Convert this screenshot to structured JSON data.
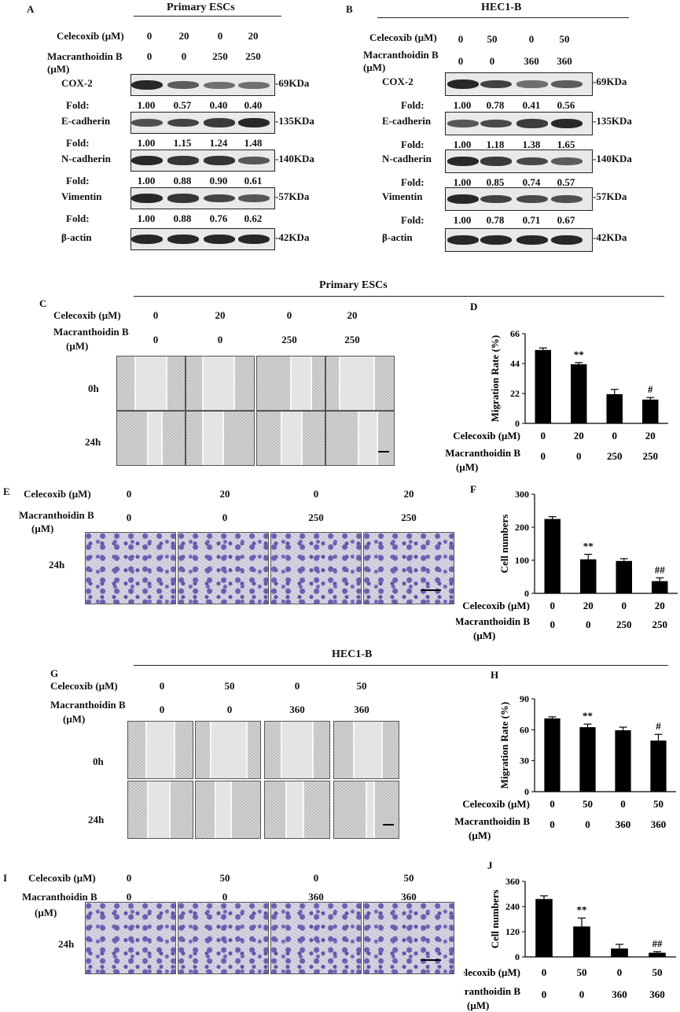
{
  "panels": {
    "A": {
      "letter": "A",
      "title": "Primary ESCs",
      "row1_label": "Celecoxib (μM)",
      "row1": [
        "0",
        "20",
        "0",
        "20"
      ],
      "row2_label": "Macranthoidin B",
      "row2_label2": "(μM)",
      "row2": [
        "0",
        "0",
        "250",
        "250"
      ],
      "blots": [
        {
          "name": "COX-2",
          "kda": "-69KDa",
          "fold": [
            "1.00",
            "0.57",
            "0.40",
            "0.40"
          ]
        },
        {
          "name": "E-cadherin",
          "kda": "-135KDa",
          "fold": [
            "1.00",
            "1.15",
            "1.24",
            "1.48"
          ]
        },
        {
          "name": "N-cadherin",
          "kda": "-140KDa",
          "fold": [
            "1.00",
            "0.88",
            "0.90",
            "0.61"
          ]
        },
        {
          "name": "Vimentin",
          "kda": "-57KDa",
          "fold": [
            "1.00",
            "0.88",
            "0.76",
            "0.62"
          ]
        },
        {
          "name": "β-actin",
          "kda": "-42KDa",
          "fold": null
        }
      ],
      "fold_label": "Fold:"
    },
    "B": {
      "letter": "B",
      "title": "HEC1-B",
      "row1_label": "Celecoxib (μM)",
      "row1": [
        "0",
        "50",
        "0",
        "50"
      ],
      "row2_label": "Macranthoidin B",
      "row2_label2": "(μM)",
      "row2": [
        "0",
        "0",
        "360",
        "360"
      ],
      "blots": [
        {
          "name": "COX-2",
          "kda": "-69KDa",
          "fold": [
            "1.00",
            "0.78",
            "0.41",
            "0.56"
          ]
        },
        {
          "name": "E-cadherin",
          "kda": "-135KDa",
          "fold": [
            "1.00",
            "1.18",
            "1.38",
            "1.65"
          ]
        },
        {
          "name": "N-cadherin",
          "kda": "-140KDa",
          "fold": [
            "1.00",
            "0.85",
            "0.74",
            "0.57"
          ]
        },
        {
          "name": "Vimentin",
          "kda": "-57KDa",
          "fold": [
            "1.00",
            "0.78",
            "0.71",
            "0.67"
          ]
        },
        {
          "name": "β-actin",
          "kda": "-42KDa",
          "fold": null
        }
      ],
      "fold_label": "Fold:"
    },
    "section1_title": "Primary ESCs",
    "section2_title": "HEC1-B",
    "C": {
      "letter": "C",
      "row1_label": "Celecoxib (μM)",
      "row1": [
        "0",
        "20",
        "0",
        "20"
      ],
      "row2_label": "Macranthoidin B",
      "row2_label2": "(μM)",
      "row2": [
        "0",
        "0",
        "250",
        "250"
      ],
      "t0": "0h",
      "t24": "24h"
    },
    "E": {
      "letter": "E",
      "row1_label": "Celecoxib (μM)",
      "row1": [
        "0",
        "20",
        "0",
        "20"
      ],
      "row2_label": "Macranthoidin B",
      "row2_label2": "(μM)",
      "row2": [
        "0",
        "0",
        "250",
        "250"
      ],
      "t24": "24h"
    },
    "G": {
      "letter": "G",
      "row1_label": "Celecoxib (μM)",
      "row1": [
        "0",
        "50",
        "0",
        "50"
      ],
      "row2_label": "Macranthoidin B",
      "row2_label2": "(μM)",
      "row2": [
        "0",
        "0",
        "360",
        "360"
      ],
      "t0": "0h",
      "t24": "24h"
    },
    "I": {
      "letter": "I",
      "row1_label": "Celecoxib (μM)",
      "row1": [
        "0",
        "50",
        "0",
        "50"
      ],
      "row2_label": "Macranthoidin B",
      "row2_label2": "(μM)",
      "row2": [
        "0",
        "0",
        "360",
        "360"
      ],
      "t24": "24h"
    }
  },
  "chart_data": [
    {
      "id": "D",
      "letter": "D",
      "type": "bar",
      "ylabel": "Migration Rate (%)",
      "ylim": [
        0,
        66
      ],
      "yticks": [
        "0",
        "22",
        "44",
        "66"
      ],
      "values": [
        54,
        43.5,
        21.5,
        17.5
      ],
      "errors": [
        1.5,
        1.2,
        3.5,
        1.5
      ],
      "annotations": [
        "",
        "**",
        "",
        "#"
      ],
      "row1_label": "Celecoxib (μM)",
      "row1": [
        "0",
        "20",
        "0",
        "20"
      ],
      "row2_label": "Macranthoidin B",
      "row2_label2": "(μM)",
      "row2": [
        "0",
        "0",
        "250",
        "250"
      ]
    },
    {
      "id": "F",
      "letter": "F",
      "type": "bar",
      "ylabel": "Cell numbers",
      "ylim": [
        0,
        300
      ],
      "yticks": [
        "0",
        "100",
        "200",
        "300"
      ],
      "values": [
        225,
        103,
        98,
        37
      ],
      "errors": [
        7,
        15,
        7,
        10
      ],
      "annotations": [
        "",
        "**",
        "",
        "##"
      ],
      "row1_label": "Celecoxib (μM)",
      "row1": [
        "0",
        "20",
        "0",
        "20"
      ],
      "row2_label": "Macranthoidin B",
      "row2_label2": "(μM)",
      "row2": [
        "0",
        "0",
        "250",
        "250"
      ]
    },
    {
      "id": "H",
      "letter": "H",
      "type": "bar",
      "ylabel": "Migration Rate (%)",
      "ylim": [
        0,
        90
      ],
      "yticks": [
        "0",
        "30",
        "60",
        "90"
      ],
      "values": [
        71,
        62.5,
        59.5,
        49.5
      ],
      "errors": [
        1.5,
        3,
        3,
        6
      ],
      "annotations": [
        "",
        "**",
        "",
        "#"
      ],
      "row1_label": "Celecoxib (μM)",
      "row1": [
        "0",
        "50",
        "0",
        "50"
      ],
      "row2_label": "Macranthoidin B",
      "row2_label2": "(μM)",
      "row2": [
        "0",
        "0",
        "360",
        "360"
      ]
    },
    {
      "id": "J",
      "letter": "J",
      "type": "bar",
      "ylabel": "Cell numbers",
      "ylim": [
        0,
        360
      ],
      "yticks": [
        "0",
        "120",
        "240",
        "360"
      ],
      "values": [
        276,
        145,
        40,
        20
      ],
      "errors": [
        15,
        40,
        20,
        5
      ],
      "annotations": [
        "",
        "**",
        "",
        "##"
      ],
      "row1_label": "Celecoxib (μM)",
      "row1": [
        "0",
        "50",
        "0",
        "50"
      ],
      "row2_label": "Macranthoidin B",
      "row2_label2": "(μM)",
      "row2": [
        "0",
        "0",
        "360",
        "360"
      ]
    }
  ]
}
